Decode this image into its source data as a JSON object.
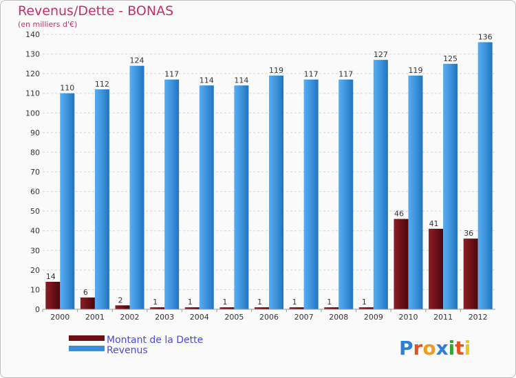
{
  "chart_data": {
    "type": "bar",
    "title": "Revenus/Dette - BONAS",
    "subtitle": "(en milliers d'€)",
    "categories": [
      "2000",
      "2001",
      "2002",
      "2003",
      "2004",
      "2005",
      "2006",
      "2007",
      "2008",
      "2009",
      "2010",
      "2011",
      "2012"
    ],
    "series": [
      {
        "name": "Montant de la Dette",
        "color": "#6b0f14",
        "values": [
          14,
          6,
          2,
          1,
          1,
          1,
          1,
          1,
          1,
          1,
          46,
          41,
          36
        ]
      },
      {
        "name": "Revenus",
        "color": "#3a8fd8",
        "values": [
          110,
          112,
          124,
          117,
          114,
          114,
          119,
          117,
          117,
          127,
          119,
          125,
          136
        ]
      }
    ],
    "ylim": [
      0,
      140
    ],
    "yticks": [
      0,
      10,
      20,
      30,
      40,
      50,
      60,
      70,
      80,
      90,
      100,
      110,
      120,
      130,
      140
    ],
    "grid": true,
    "legend_placement": "bottom-left"
  },
  "branding": {
    "logo_text": "Proxiti",
    "logo_letters": [
      {
        "ch": "P",
        "color": "#2e7fd6"
      },
      {
        "ch": "r",
        "color": "#e8501e"
      },
      {
        "ch": "o",
        "color": "#f29a1d"
      },
      {
        "ch": "x",
        "color": "#2e7fd6"
      },
      {
        "ch": "i",
        "color": "#3aa13a"
      },
      {
        "ch": "t",
        "color": "#e8501e"
      },
      {
        "ch": "i",
        "color": "#f2c21d"
      }
    ]
  }
}
